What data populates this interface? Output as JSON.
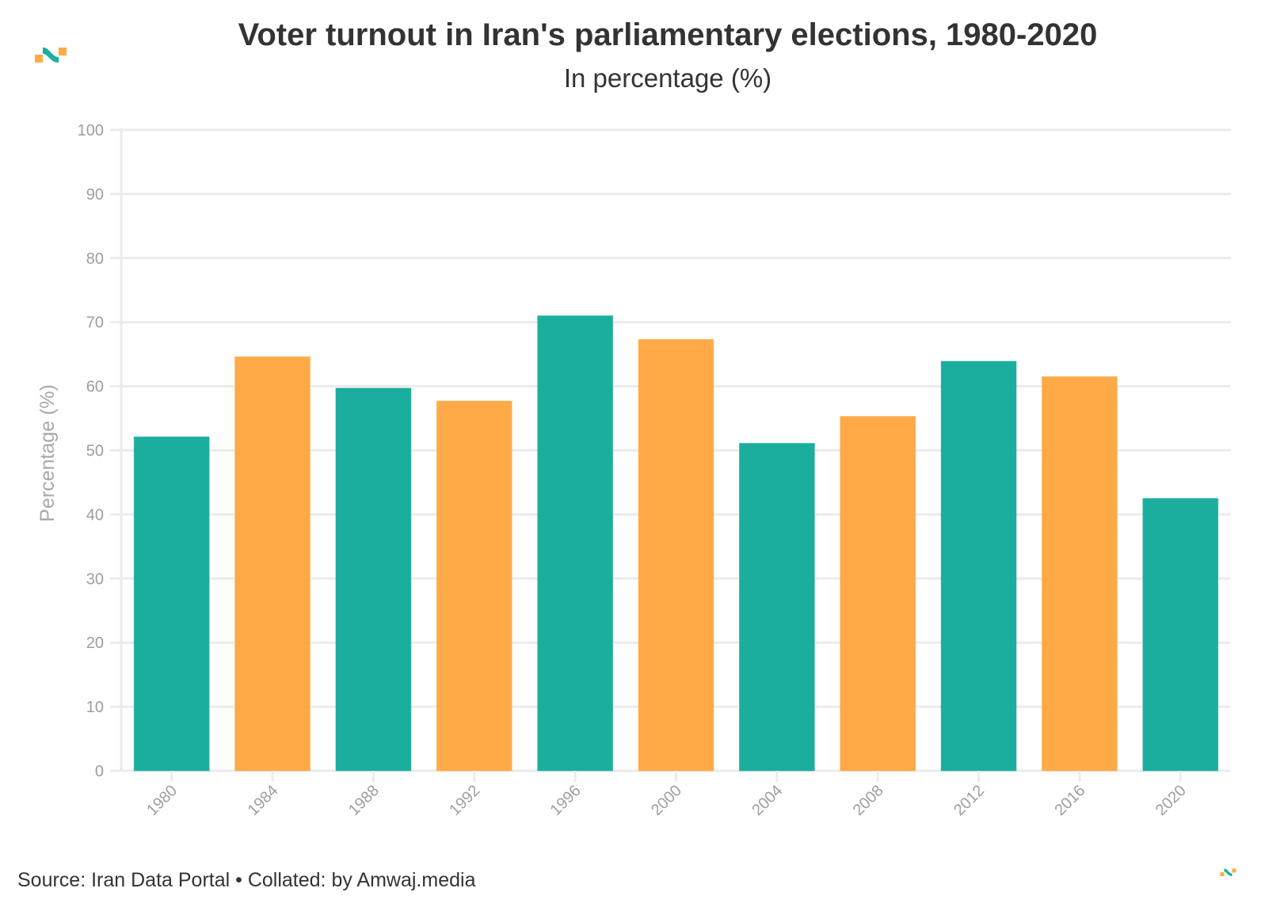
{
  "header": {
    "title": "Voter turnout in Iran's parliamentary elections, 1980-2020",
    "subtitle": "In percentage (%)",
    "logo_icon": "amwaj-logo-icon"
  },
  "footer": {
    "source": "Source: Iran Data Portal • Collated: by Amwaj.media",
    "logo_icon": "amwaj-logo-icon"
  },
  "colors": {
    "teal": "#1bae9e",
    "orange": "#ffaa47",
    "grid": "#ebebeb"
  },
  "chart_data": {
    "type": "bar",
    "title": "Voter turnout in Iran's parliamentary elections, 1980-2020",
    "subtitle": "In percentage (%)",
    "xlabel": "",
    "ylabel": "Percentage (%)",
    "ylim": [
      0,
      100
    ],
    "yticks": [
      0,
      10,
      20,
      30,
      40,
      50,
      60,
      70,
      80,
      90,
      100
    ],
    "grid": true,
    "legend": "none",
    "categories": [
      "1980",
      "1984",
      "1988",
      "1992",
      "1996",
      "2000",
      "2004",
      "2008",
      "2012",
      "2016",
      "2020"
    ],
    "values": [
      52.1,
      64.6,
      59.7,
      57.7,
      71.0,
      67.3,
      51.1,
      55.3,
      63.9,
      61.5,
      42.5
    ],
    "bar_colors": [
      "teal",
      "orange",
      "teal",
      "orange",
      "teal",
      "orange",
      "teal",
      "orange",
      "teal",
      "orange",
      "teal"
    ]
  }
}
